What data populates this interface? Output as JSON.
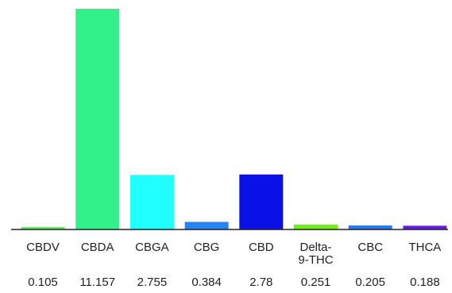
{
  "chart_data": {
    "type": "bar",
    "title": "",
    "xlabel": "",
    "ylabel": "",
    "ylim": [
      0,
      11.157
    ],
    "grid": false,
    "legend": "none",
    "categories": [
      [
        "CBDV"
      ],
      [
        "CBDA"
      ],
      [
        "CBGA"
      ],
      [
        "CBG"
      ],
      [
        "CBD"
      ],
      [
        "Delta-",
        "9-THC"
      ],
      [
        "CBC"
      ],
      [
        "THCA"
      ]
    ],
    "values": [
      0.105,
      11.157,
      2.755,
      0.384,
      2.78,
      0.251,
      0.205,
      0.188
    ],
    "value_labels": [
      "0.105",
      "11.157",
      "2.755",
      "0.384",
      "2.78",
      "0.251",
      "0.205",
      "0.188"
    ],
    "colors": [
      "#5cec5c",
      "#33f18a",
      "#20fefe",
      "#2486f5",
      "#0a10e8",
      "#6cf00c",
      "#2a78ef",
      "#6a1ae6"
    ]
  }
}
